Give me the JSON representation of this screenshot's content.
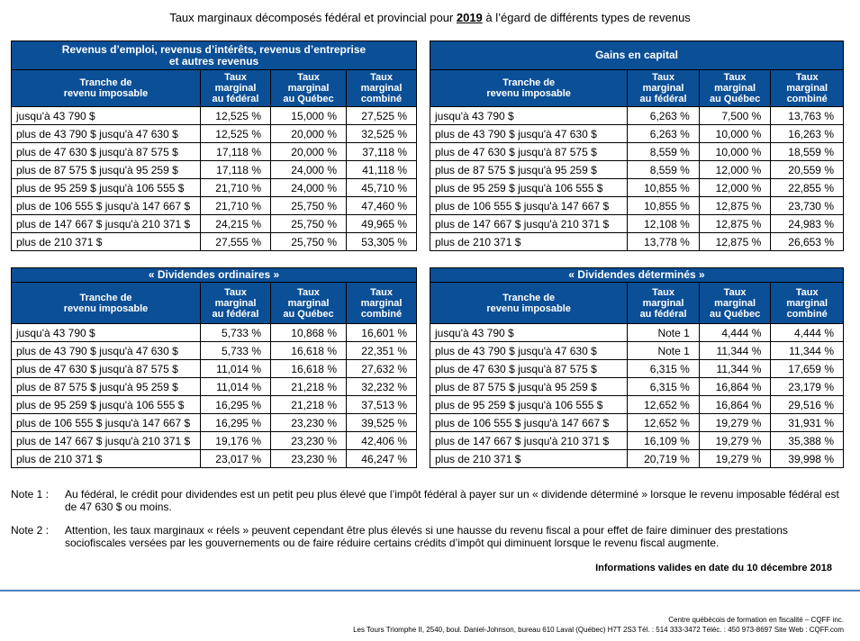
{
  "title": {
    "before": "Taux marginaux décomposés fédéral et provincial pour ",
    "year": "2019",
    "after": " à l’égard de différents types de revenus"
  },
  "columns": [
    "Tranche de\nrevenu imposable",
    "Taux\nmarginal\nau fédéral",
    "Taux\nmarginal\nau Québec",
    "Taux\nmarginal\ncombiné"
  ],
  "brackets": [
    "jusqu'à 43 790 $",
    "plus de 43 790 $ jusqu'à 47 630 $",
    "plus de 47 630 $ jusqu'à 87 575 $",
    "plus de 87 575 $ jusqu'à 95 259 $",
    "plus de 95 259 $ jusqu'à 106 555 $",
    "plus de 106 555 $ jusqu'à 147 667 $",
    "plus de 147 667 $ jusqu'à 210 371 $",
    "plus de 210 371 $"
  ],
  "tables": [
    {
      "caption": "Revenus d’emploi, revenus d’intérêts, revenus d’entreprise\net autres revenus",
      "rows": [
        [
          "12,525 %",
          "15,000 %",
          "27,525 %"
        ],
        [
          "12,525 %",
          "20,000 %",
          "32,525 %"
        ],
        [
          "17,118 %",
          "20,000 %",
          "37,118 %"
        ],
        [
          "17,118 %",
          "24,000 %",
          "41,118 %"
        ],
        [
          "21,710 %",
          "24,000 %",
          "45,710 %"
        ],
        [
          "21,710 %",
          "25,750 %",
          "47,460 %"
        ],
        [
          "24,215 %",
          "25,750 %",
          "49,965 %"
        ],
        [
          "27,555 %",
          "25,750 %",
          "53,305 %"
        ]
      ]
    },
    {
      "caption": "Gains en capital",
      "rows": [
        [
          "6,263 %",
          "7,500 %",
          "13,763 %"
        ],
        [
          "6,263 %",
          "10,000 %",
          "16,263 %"
        ],
        [
          "8,559 %",
          "10,000 %",
          "18,559 %"
        ],
        [
          "8,559 %",
          "12,000 %",
          "20,559 %"
        ],
        [
          "10,855 %",
          "12,000 %",
          "22,855 %"
        ],
        [
          "10,855 %",
          "12,875 %",
          "23,730 %"
        ],
        [
          "12,108 %",
          "12,875 %",
          "24,983 %"
        ],
        [
          "13,778 %",
          "12,875 %",
          "26,653 %"
        ]
      ]
    },
    {
      "caption": "« Dividendes ordinaires »",
      "rows": [
        [
          "5,733 %",
          "10,868 %",
          "16,601 %"
        ],
        [
          "5,733 %",
          "16,618 %",
          "22,351 %"
        ],
        [
          "11,014 %",
          "16,618 %",
          "27,632 %"
        ],
        [
          "11,014 %",
          "21,218 %",
          "32,232 %"
        ],
        [
          "16,295 %",
          "21,218 %",
          "37,513 %"
        ],
        [
          "16,295 %",
          "23,230 %",
          "39,525 %"
        ],
        [
          "19,176 %",
          "23,230 %",
          "42,406 %"
        ],
        [
          "23,017 %",
          "23,230 %",
          "46,247 %"
        ]
      ]
    },
    {
      "caption": "« Dividendes déterminés »",
      "rows": [
        [
          "Note 1",
          "4,444 %",
          "4,444 %"
        ],
        [
          "Note 1",
          "11,344 %",
          "11,344 %"
        ],
        [
          "6,315 %",
          "11,344 %",
          "17,659 %"
        ],
        [
          "6,315 %",
          "16,864 %",
          "23,179 %"
        ],
        [
          "12,652 %",
          "16,864 %",
          "29,516 %"
        ],
        [
          "12,652 %",
          "19,279 %",
          "31,931 %"
        ],
        [
          "16,109 %",
          "19,279 %",
          "35,388 %"
        ],
        [
          "20,719 %",
          "19,279 %",
          "39,998 %"
        ]
      ]
    }
  ],
  "notes": [
    {
      "key": "Note 1 :",
      "text": "Au fédéral, le crédit pour dividendes est un petit peu plus élevé que l’impôt fédéral à payer sur un « dividende déterminé » lorsque le revenu imposable fédéral est de 47 630 $ ou moins."
    },
    {
      "key": "Note 2 :",
      "text": "Attention, les taux marginaux « réels » peuvent cependant être plus élevés si une hausse du revenu fiscal a pour effet de faire diminuer des prestations sociofiscales versées par les gouvernements ou de faire réduire certains crédits d’impôt qui diminuent lorsque le revenu fiscal augmente."
    }
  ],
  "validity": "Informations valides en date du 10 décembre 2018",
  "footer": {
    "org": "Centre québécois de formation en fiscalité – CQFF inc.",
    "address": "Les Tours Triomphe II, 2540, boul. Daniel-Johnson, bureau 610  Laval (Québec)  H7T 2S3  Tél. : 514 333-3472  Téléc. : 450 973-8697  Site Web : CQFF.com"
  }
}
